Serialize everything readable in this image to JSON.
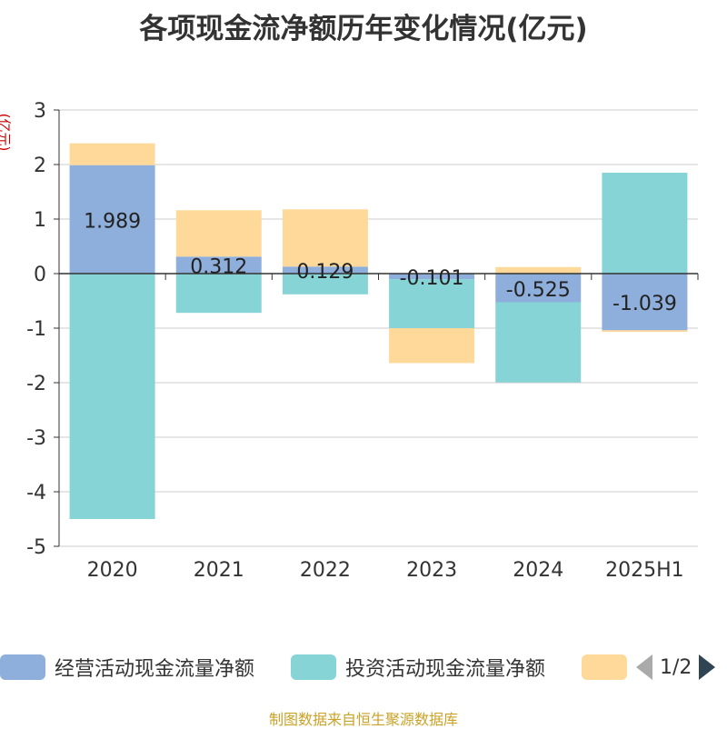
{
  "title": "各项现金流净额历年变化情况(亿元)",
  "ylabel": "(亿元)",
  "footer": "制图数据来自恒生聚源数据库",
  "legend": {
    "items": [
      {
        "label": "经营活动现金流量净额",
        "color": "#8eaedb"
      },
      {
        "label": "投资活动现金流量净额",
        "color": "#87d4d7"
      },
      {
        "label": "",
        "color": "#fed999"
      }
    ],
    "pager": "1/2"
  },
  "chart_data": {
    "type": "bar",
    "stacked": true,
    "categories": [
      "2020",
      "2021",
      "2022",
      "2023",
      "2024",
      "2025H1"
    ],
    "ylim": [
      -5,
      3
    ],
    "yticks": [
      3,
      2,
      1,
      0,
      -1,
      -2,
      -3,
      -4,
      -5
    ],
    "grid": true,
    "series": [
      {
        "name": "经营活动现金流量净额",
        "color": "#8eaedb",
        "values": [
          1.989,
          0.312,
          0.129,
          -0.101,
          -0.525,
          -1.039
        ],
        "labels": [
          "1.989",
          "0.312",
          "0.129",
          "-0.101",
          "-0.525",
          "-1.039"
        ]
      },
      {
        "name": "投资活动现金流量净额",
        "color": "#87d4d7",
        "values": [
          -4.5,
          -0.72,
          -0.38,
          -0.9,
          -1.47,
          1.85
        ]
      },
      {
        "name": "",
        "color": "#fed999",
        "values": [
          0.4,
          0.85,
          1.05,
          -0.64,
          0.12,
          -0.03
        ]
      }
    ]
  }
}
